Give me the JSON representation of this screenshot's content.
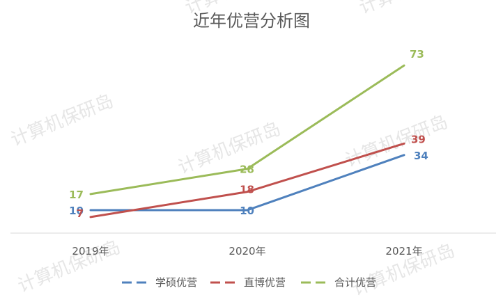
{
  "watermark": "计算机保研岛",
  "chart_data": {
    "type": "line",
    "title": "近年优营分析图",
    "categories": [
      "2019年",
      "2020年",
      "2021年"
    ],
    "series": [
      {
        "name": "学硕优营",
        "values": [
          10,
          10,
          34
        ],
        "color": "#4f81bd"
      },
      {
        "name": "直博优营",
        "values": [
          7,
          18,
          39
        ],
        "color": "#c0504d"
      },
      {
        "name": "合计优营",
        "values": [
          17,
          28,
          73
        ],
        "color": "#9bbb59"
      }
    ],
    "ylim": [
      0,
      80
    ],
    "grid": false,
    "legend": "bottom"
  }
}
